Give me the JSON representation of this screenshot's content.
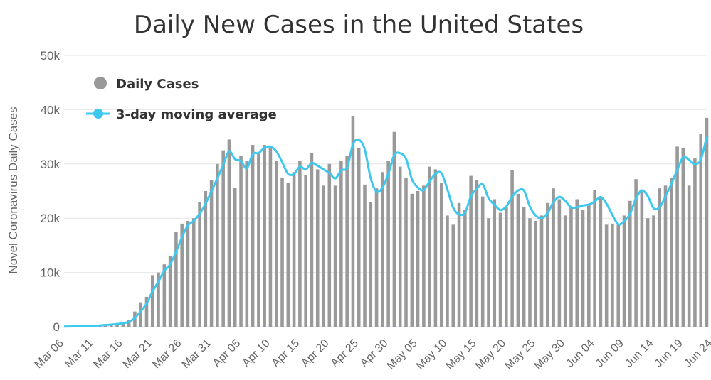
{
  "chart_data": {
    "type": "bar",
    "title": "Daily New Cases in the United States",
    "ylabel": "Novel Coronavirus Daily Cases",
    "xlabel": "",
    "ylim": [
      0,
      50000
    ],
    "yticks": [
      0,
      10000,
      20000,
      30000,
      40000,
      50000
    ],
    "ytick_labels": [
      "0",
      "10k",
      "20k",
      "30k",
      "40k",
      "50k"
    ],
    "grid": true,
    "legend_position": "top-left",
    "start_date": "Mar 06",
    "xtick_labels": [
      "Mar 06",
      "Mar 11",
      "Mar 16",
      "Mar 21",
      "Mar 26",
      "Mar 31",
      "Apr 05",
      "Apr 10",
      "Apr 15",
      "Apr 20",
      "Apr 25",
      "Apr 30",
      "May 05",
      "May 10",
      "May 15",
      "May 20",
      "May 25",
      "May 30",
      "Jun 04",
      "Jun 09",
      "Jun 14",
      "Jun 19",
      "Jun 24"
    ],
    "series": [
      {
        "name": "Daily Cases",
        "kind": "bar",
        "color": "#999999",
        "values": [
          40,
          60,
          90,
          120,
          160,
          250,
          300,
          400,
          500,
          600,
          900,
          1200,
          2800,
          4500,
          5500,
          9500,
          10000,
          11500,
          13000,
          17500,
          19000,
          19500,
          20000,
          23000,
          25000,
          27000,
          30000,
          32500,
          34500,
          25600,
          31500,
          30500,
          33500,
          32000,
          33500,
          33000,
          30500,
          27500,
          26500,
          28500,
          30500,
          28000,
          32000,
          29000,
          26000,
          30000,
          26000,
          30500,
          31500,
          38800,
          33000,
          26200,
          23000,
          25500,
          28500,
          30500,
          35900,
          29500,
          27500,
          24500,
          25000,
          26000,
          29500,
          29000,
          26500,
          20500,
          18800,
          22800,
          21500,
          27800,
          27000,
          24000,
          20000,
          23500,
          21000,
          22000,
          28800,
          24500,
          22000,
          20000,
          19500,
          20500,
          22800,
          25500,
          23500,
          20500,
          22000,
          23500,
          21500,
          22500,
          25200,
          24000,
          18800,
          19000,
          18800,
          20500,
          23200,
          27200,
          25000,
          20000,
          20500,
          25500,
          26000,
          27500,
          33200,
          33000,
          26000,
          31000,
          35500,
          38500
        ],
        "data_labels": false
      },
      {
        "name": "3-day moving average",
        "kind": "line",
        "color": "#3dc8f0",
        "marker": "circle",
        "values": [
          35,
          50,
          70,
          90,
          123,
          177,
          237,
          317,
          400,
          500,
          667,
          900,
          1633,
          2833,
          4267,
          6500,
          8333,
          10333,
          11500,
          13833,
          16500,
          18667,
          19500,
          20833,
          22667,
          25000,
          27333,
          29833,
          32333,
          30867,
          30533,
          29200,
          31833,
          32000,
          33000,
          33167,
          32333,
          30333,
          28167,
          28167,
          29500,
          29000,
          30167,
          29667,
          29000,
          28333,
          27333,
          28833,
          29333,
          33600,
          34433,
          32667,
          27400,
          24900,
          25667,
          28167,
          31633,
          31967,
          30967,
          27167,
          25667,
          25167,
          26833,
          28167,
          28333,
          25333,
          21933,
          20700,
          21033,
          24033,
          25433,
          26267,
          23667,
          22500,
          21500,
          22167,
          23933,
          25100,
          25100,
          22167,
          20500,
          20000,
          20933,
          22933,
          23933,
          23167,
          22000,
          22000,
          22333,
          22500,
          23067,
          23900,
          22667,
          20600,
          18867,
          19433,
          20833,
          23633,
          25133,
          24067,
          21833,
          22000,
          24000,
          26333,
          28900,
          31233,
          30733,
          30000,
          30833,
          35000
        ]
      }
    ]
  }
}
